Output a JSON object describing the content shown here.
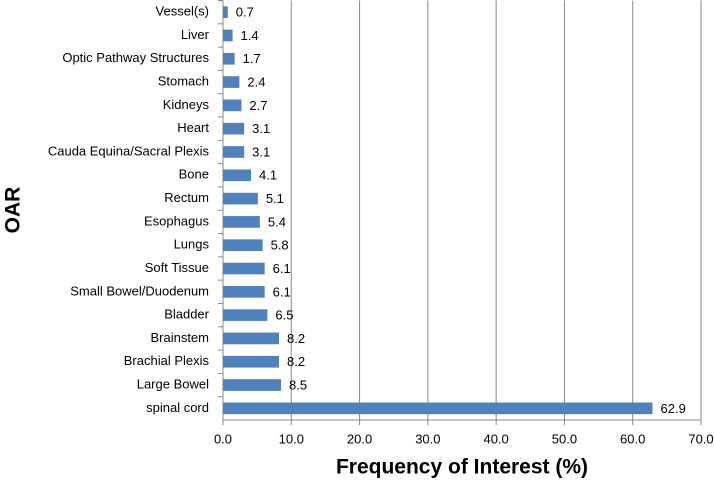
{
  "chart_data": {
    "type": "barh",
    "x_label": "Frequency of Interest (%)",
    "y_label": "OAR",
    "categories": [
      "Vessel(s)",
      "Liver",
      "Optic Pathway Structures",
      "Stomach",
      "Kidneys",
      "Heart",
      "Cauda Equina/Sacral Plexis",
      "Bone",
      "Rectum",
      "Esophagus",
      "Lungs",
      "Soft Tissue",
      "Small Bowel/Duodenum",
      "Bladder",
      "Brainstem",
      "Brachial Plexis",
      "Large Bowel",
      "spinal cord"
    ],
    "values": [
      0.7,
      1.4,
      1.7,
      2.4,
      2.7,
      3.1,
      3.1,
      4.1,
      5.1,
      5.4,
      5.8,
      6.1,
      6.1,
      6.5,
      8.2,
      8.2,
      8.5,
      62.9
    ],
    "color": "#4f81bd",
    "xlim": [
      0,
      70
    ],
    "xticks": [
      {
        "value": 0,
        "label": "0.0"
      },
      {
        "value": 10,
        "label": "10.0"
      },
      {
        "value": 20,
        "label": "20.0"
      },
      {
        "value": 30,
        "label": "30.0"
      },
      {
        "value": 40,
        "label": "40.0"
      },
      {
        "value": 50,
        "label": "50.0"
      },
      {
        "value": 60,
        "label": "60.0"
      },
      {
        "value": 70,
        "label": "70.0"
      }
    ],
    "grid": true
  }
}
